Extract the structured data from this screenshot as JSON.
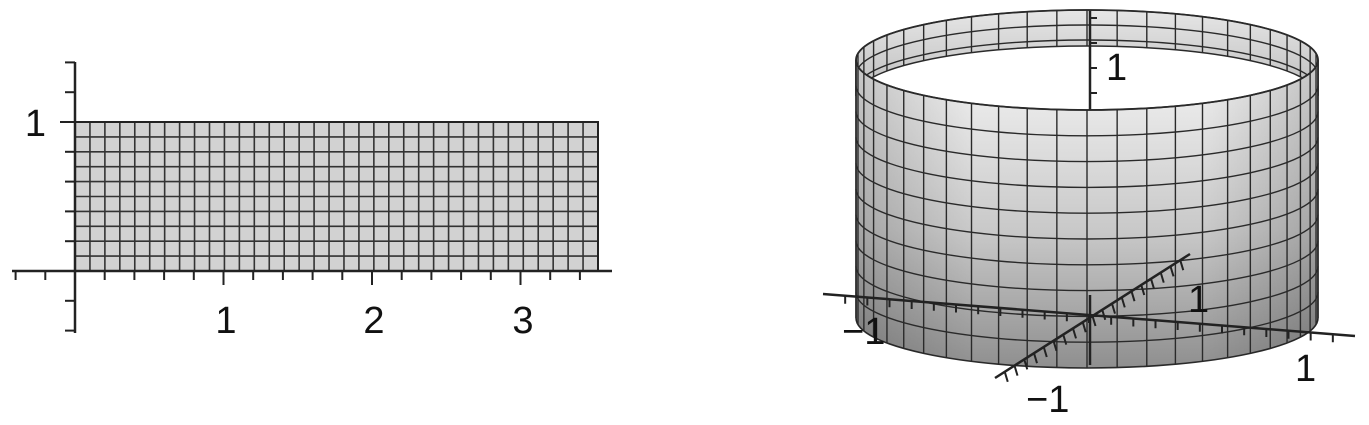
{
  "left_plot": {
    "x_labels": [
      "1",
      "2",
      "3"
    ],
    "y_labels": [
      "1"
    ],
    "region": {
      "x_max": 3.5,
      "y_max": 1
    }
  },
  "right_plot": {
    "z_label": "1",
    "y_pos_label": "1",
    "x_neg_label": "−1",
    "x_pos_label": "1",
    "y_neg_label": "−1"
  }
}
